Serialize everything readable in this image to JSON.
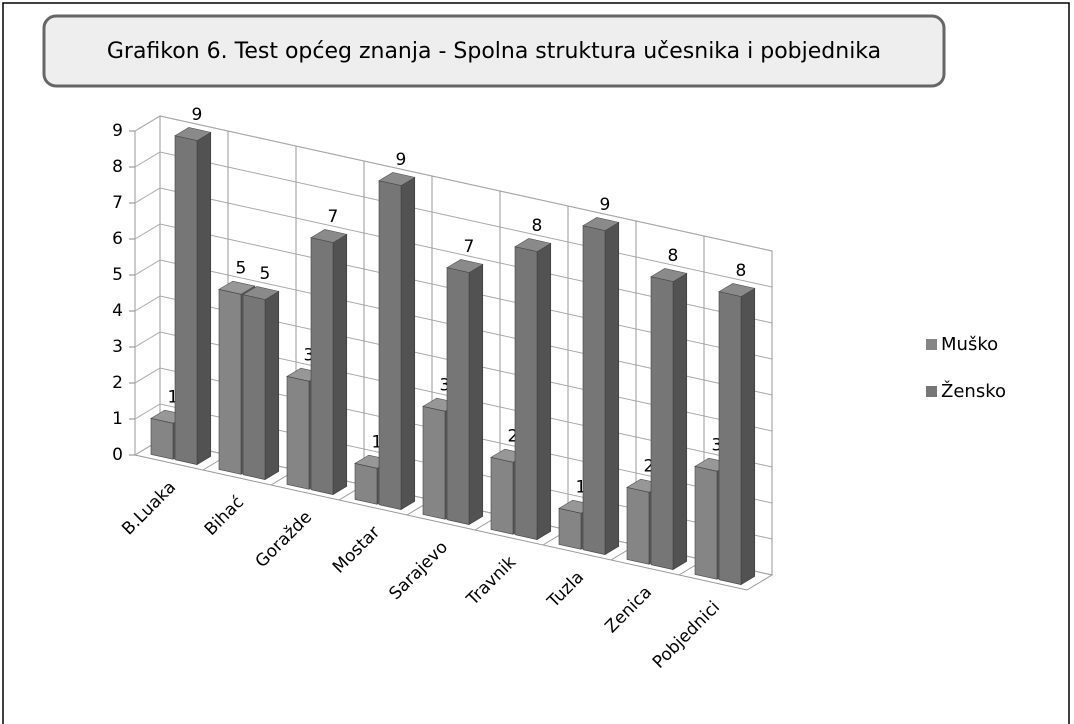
{
  "chart_data": {
    "type": "bar3d",
    "title": "Grafikon 6. Test općeg znanja - Spolna struktura učesnika i pobjednika",
    "categories": [
      "B.Luaka",
      "Bihać",
      "Goražde",
      "Mostar",
      "Sarajevo",
      "Travnik",
      "Tuzla",
      "Zenica",
      "Pobjednici"
    ],
    "series": [
      {
        "name": "Muško",
        "color": "#858585",
        "values": [
          1,
          5,
          3,
          1,
          3,
          2,
          1,
          2,
          3
        ]
      },
      {
        "name": "Žensko",
        "color": "#767676",
        "values": [
          9,
          5,
          7,
          9,
          7,
          8,
          9,
          8,
          8
        ]
      }
    ],
    "ylim": [
      0,
      9
    ],
    "yticks": [
      0,
      1,
      2,
      3,
      4,
      5,
      6,
      7,
      8,
      9
    ],
    "grid": true,
    "legend": "right"
  }
}
